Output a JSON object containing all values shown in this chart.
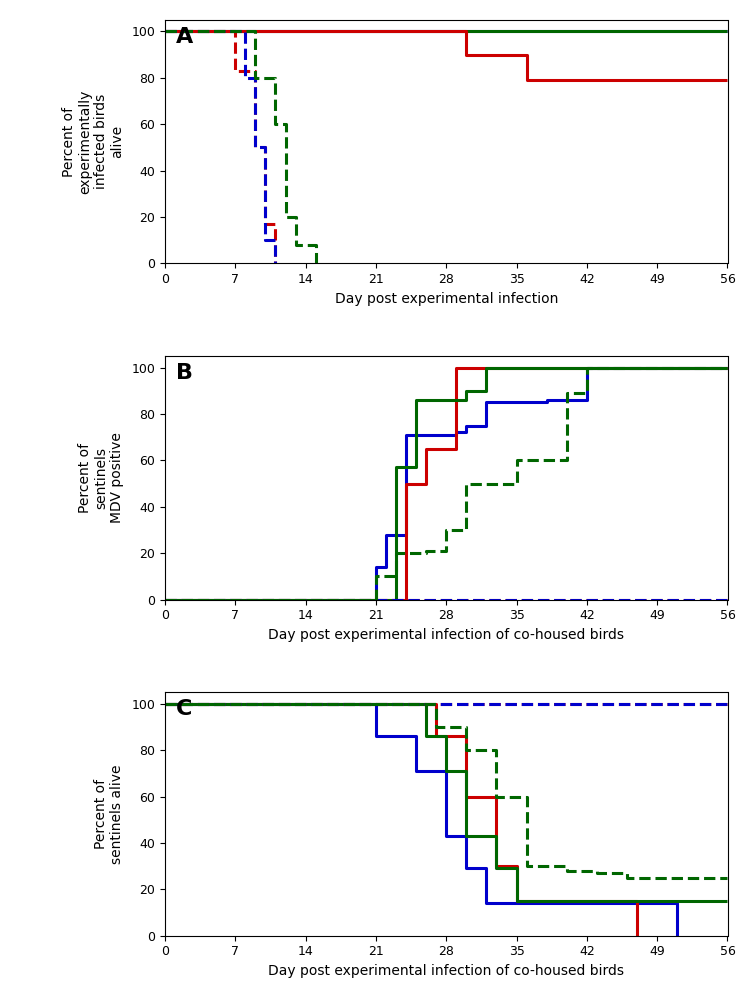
{
  "panel_A": {
    "title": "A",
    "ylabel": "Percent of\nexperimentally\ninfected birds\nalive",
    "xlabel": "Day post experimental infection",
    "xlim": [
      0,
      56
    ],
    "ylim": [
      0,
      105
    ],
    "yticks": [
      0,
      20,
      40,
      60,
      80,
      100
    ],
    "xticks": [
      0,
      7,
      14,
      21,
      28,
      35,
      42,
      49,
      56
    ],
    "lines": [
      {
        "x": [
          0,
          56
        ],
        "y": [
          100,
          100
        ],
        "color": "#0000cc",
        "ls": "solid",
        "lw": 2.2
      },
      {
        "x": [
          0,
          56
        ],
        "y": [
          100,
          100
        ],
        "color": "#006600",
        "ls": "solid",
        "lw": 2.2
      },
      {
        "x": [
          0,
          30,
          30,
          36,
          36,
          56
        ],
        "y": [
          100,
          100,
          90,
          90,
          79,
          79
        ],
        "color": "#cc0000",
        "ls": "solid",
        "lw": 2.2
      },
      {
        "x": [
          0,
          7,
          7,
          9,
          9,
          10,
          10,
          11,
          11
        ],
        "y": [
          100,
          100,
          83,
          83,
          50,
          50,
          17,
          17,
          0
        ],
        "color": "#cc0000",
        "ls": "dashed",
        "lw": 2.2
      },
      {
        "x": [
          0,
          8,
          8,
          9,
          9,
          10,
          10,
          11,
          11
        ],
        "y": [
          100,
          100,
          80,
          80,
          50,
          50,
          10,
          10,
          0
        ],
        "color": "#0000cc",
        "ls": "dashed",
        "lw": 2.2
      },
      {
        "x": [
          0,
          9,
          9,
          11,
          11,
          12,
          12,
          13,
          13,
          15,
          15
        ],
        "y": [
          100,
          100,
          80,
          80,
          60,
          60,
          20,
          20,
          8,
          8,
          0
        ],
        "color": "#006600",
        "ls": "dashed",
        "lw": 2.2
      }
    ]
  },
  "panel_B": {
    "title": "B",
    "ylabel": "Percent of\nsentinels\nMDV positive",
    "xlabel": "Day post experimental infection of co-housed birds",
    "xlim": [
      0,
      56
    ],
    "ylim": [
      0,
      105
    ],
    "yticks": [
      0,
      20,
      40,
      60,
      80,
      100
    ],
    "xticks": [
      0,
      7,
      14,
      21,
      28,
      35,
      42,
      49,
      56
    ],
    "lines": [
      {
        "x": [
          0,
          21,
          21,
          22,
          22,
          24,
          24,
          29,
          29,
          30,
          30,
          32,
          32,
          38,
          38,
          42,
          42,
          56
        ],
        "y": [
          0,
          0,
          14,
          14,
          28,
          28,
          71,
          71,
          72,
          72,
          75,
          75,
          85,
          85,
          86,
          86,
          100,
          100
        ],
        "color": "#0000cc",
        "ls": "solid",
        "lw": 2.2
      },
      {
        "x": [
          0,
          24,
          24,
          26,
          26,
          29,
          29,
          30,
          30,
          56
        ],
        "y": [
          0,
          0,
          50,
          50,
          65,
          65,
          100,
          100,
          100,
          100
        ],
        "color": "#cc0000",
        "ls": "solid",
        "lw": 2.2
      },
      {
        "x": [
          0,
          23,
          23,
          25,
          25,
          30,
          30,
          32,
          32,
          56
        ],
        "y": [
          0,
          0,
          57,
          57,
          86,
          86,
          90,
          90,
          100,
          100
        ],
        "color": "#006600",
        "ls": "solid",
        "lw": 2.2
      },
      {
        "x": [
          0,
          56
        ],
        "y": [
          0,
          0
        ],
        "color": "#cc0000",
        "ls": "dashed",
        "lw": 2.2
      },
      {
        "x": [
          0,
          56
        ],
        "y": [
          0,
          0
        ],
        "color": "#0000cc",
        "ls": "dashed",
        "lw": 2.2
      },
      {
        "x": [
          0,
          21,
          21,
          23,
          23,
          26,
          26,
          28,
          28,
          30,
          30,
          35,
          35,
          40,
          40,
          42,
          42,
          56
        ],
        "y": [
          0,
          0,
          10,
          10,
          20,
          20,
          21,
          21,
          30,
          30,
          50,
          50,
          60,
          60,
          89,
          89,
          100,
          100
        ],
        "color": "#006600",
        "ls": "dashed",
        "lw": 2.2
      }
    ]
  },
  "panel_C": {
    "title": "C",
    "ylabel": "Percent of\nsentinels alive",
    "xlabel": "Day post experimental infection of co-housed birds",
    "xlim": [
      0,
      56
    ],
    "ylim": [
      0,
      105
    ],
    "yticks": [
      0,
      20,
      40,
      60,
      80,
      100
    ],
    "xticks": [
      0,
      7,
      14,
      21,
      28,
      35,
      42,
      49,
      56
    ],
    "lines": [
      {
        "x": [
          0,
          21,
          21,
          25,
          25,
          28,
          28,
          30,
          30,
          32,
          32,
          35,
          35,
          51,
          51
        ],
        "y": [
          100,
          100,
          86,
          86,
          71,
          71,
          43,
          43,
          29,
          29,
          14,
          14,
          14,
          14,
          0
        ],
        "color": "#0000cc",
        "ls": "solid",
        "lw": 2.2
      },
      {
        "x": [
          0,
          27,
          27,
          30,
          30,
          33,
          33,
          35,
          35,
          40,
          40,
          47,
          47
        ],
        "y": [
          100,
          100,
          86,
          86,
          60,
          60,
          30,
          30,
          15,
          15,
          15,
          15,
          0
        ],
        "color": "#cc0000",
        "ls": "solid",
        "lw": 2.2
      },
      {
        "x": [
          0,
          26,
          26,
          28,
          28,
          30,
          30,
          33,
          33,
          35,
          35,
          40,
          40,
          44,
          44,
          56
        ],
        "y": [
          100,
          100,
          86,
          86,
          71,
          71,
          43,
          43,
          29,
          29,
          15,
          15,
          15,
          15,
          15,
          15
        ],
        "color": "#006600",
        "ls": "solid",
        "lw": 2.2
      },
      {
        "x": [
          0,
          56
        ],
        "y": [
          100,
          100
        ],
        "color": "#cc0000",
        "ls": "dashed",
        "lw": 2.2
      },
      {
        "x": [
          0,
          56
        ],
        "y": [
          100,
          100
        ],
        "color": "#0000cc",
        "ls": "dashed",
        "lw": 2.2
      },
      {
        "x": [
          0,
          27,
          27,
          30,
          30,
          33,
          33,
          36,
          36,
          40,
          40,
          43,
          43,
          46,
          46,
          50,
          50,
          56
        ],
        "y": [
          100,
          100,
          90,
          90,
          80,
          80,
          60,
          60,
          30,
          30,
          28,
          28,
          27,
          27,
          25,
          25,
          25,
          25
        ],
        "color": "#006600",
        "ls": "dashed",
        "lw": 2.2
      }
    ]
  },
  "bg_color": "#ffffff",
  "text_color": "#000000"
}
